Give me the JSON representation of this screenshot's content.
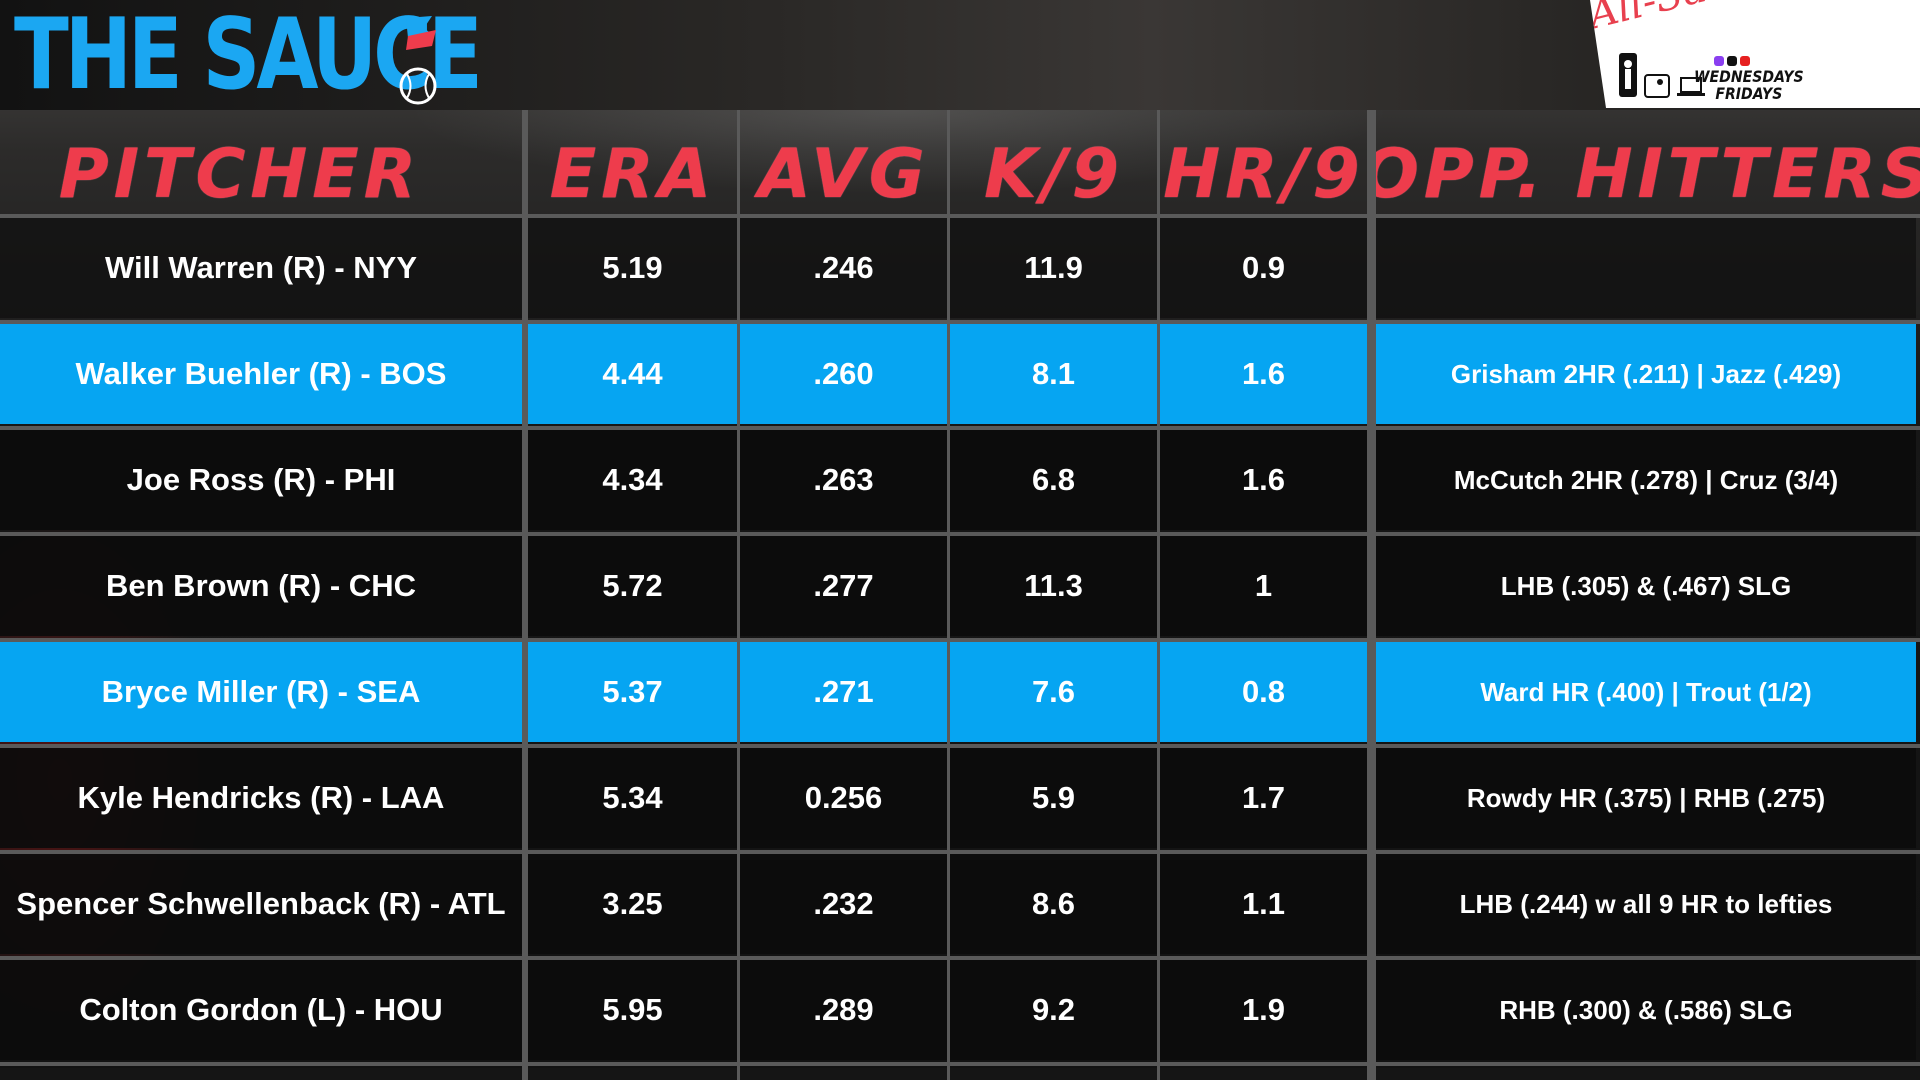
{
  "brand": {
    "title": "THE SAUCE",
    "accent_color": "#1ba7f2",
    "icons": [
      "flag-icon",
      "baseball-icon"
    ]
  },
  "badge": {
    "script_title": "All-Sauce Team",
    "days_line1": "WEDNESDAYS",
    "days_line2": "FRIDAYS",
    "icons": [
      "nba-logo-icon",
      "mlb-logo-icon",
      "laptop-icon",
      "twitch-icon",
      "x-icon",
      "youtube-icon"
    ]
  },
  "table": {
    "headers": {
      "pitcher": "PITCHER",
      "era": "ERA",
      "avg": "AVG",
      "k9": "K/9",
      "hr9": "HR/9",
      "opp": "OPP. HITTERS"
    },
    "header_color": "#ee3c4c",
    "highlight_color": "#06a5f2",
    "rows": [
      {
        "pitcher": "Will Warren (R) - NYY",
        "era": "5.19",
        "avg": ".246",
        "k9": "11.9",
        "hr9": "0.9",
        "opp": "",
        "highlight": false
      },
      {
        "pitcher": "Walker Buehler (R) - BOS",
        "era": "4.44",
        "avg": ".260",
        "k9": "8.1",
        "hr9": "1.6",
        "opp": "Grisham 2HR (.211) | Jazz (.429)",
        "highlight": true
      },
      {
        "pitcher": "Joe Ross (R) - PHI",
        "era": "4.34",
        "avg": ".263",
        "k9": "6.8",
        "hr9": "1.6",
        "opp": "McCutch 2HR (.278) | Cruz (3/4)",
        "highlight": false
      },
      {
        "pitcher": "Ben Brown (R) - CHC",
        "era": "5.72",
        "avg": ".277",
        "k9": "11.3",
        "hr9": "1",
        "opp": "LHB (.305) & (.467) SLG",
        "highlight": false
      },
      {
        "pitcher": "Bryce Miller (R) - SEA",
        "era": "5.37",
        "avg": ".271",
        "k9": "7.6",
        "hr9": "0.8",
        "opp": "Ward HR (.400) | Trout (1/2)",
        "highlight": true
      },
      {
        "pitcher": "Kyle Hendricks (R) - LAA",
        "era": "5.34",
        "avg": "0.256",
        "k9": "5.9",
        "hr9": "1.7",
        "opp": "Rowdy HR (.375) | RHB (.275)",
        "highlight": false
      },
      {
        "pitcher": "Spencer Schwellenback (R) - ATL",
        "era": "3.25",
        "avg": ".232",
        "k9": "8.6",
        "hr9": "1.1",
        "opp": "LHB (.244) w all 9 HR to lefties",
        "highlight": false
      },
      {
        "pitcher": "Colton Gordon (L) - HOU",
        "era": "5.95",
        "avg": ".289",
        "k9": "9.2",
        "hr9": "1.9",
        "opp": "RHB (.300) & (.586) SLG",
        "highlight": false
      }
    ]
  }
}
